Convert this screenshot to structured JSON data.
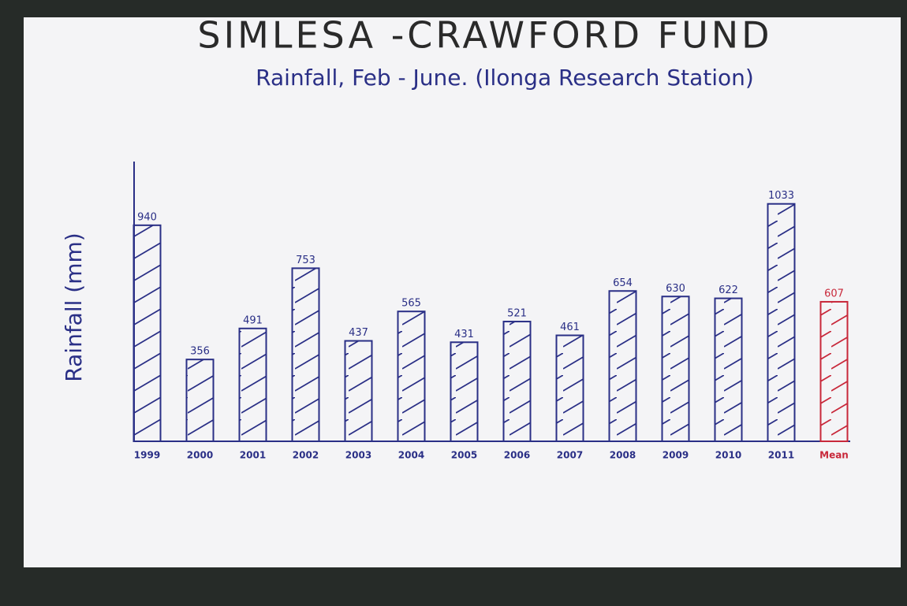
{
  "chart_data": {
    "type": "bar",
    "title": "SIMLESA -CRAWFORD FUND",
    "subtitle": "Rainfall, Feb - June. (Ilonga Research Station)",
    "y_label": "Rainfall (mm)",
    "categories": [
      "1999",
      "2000",
      "2001",
      "2002",
      "2003",
      "2004",
      "2005",
      "2006",
      "2007",
      "2008",
      "2009",
      "2010",
      "2011",
      "Mean"
    ],
    "values": [
      940,
      356,
      491,
      753,
      437,
      565,
      431,
      521,
      461,
      654,
      630,
      622,
      1033,
      607
    ],
    "colors": [
      "#2a2f86",
      "#2a2f86",
      "#2a2f86",
      "#2a2f86",
      "#2a2f86",
      "#2a2f86",
      "#2a2f86",
      "#2a2f86",
      "#2a2f86",
      "#2a2f86",
      "#2a2f86",
      "#2a2f86",
      "#2a2f86",
      "#c8283a"
    ],
    "ylim": [
      0,
      1200
    ],
    "hatch": true
  }
}
